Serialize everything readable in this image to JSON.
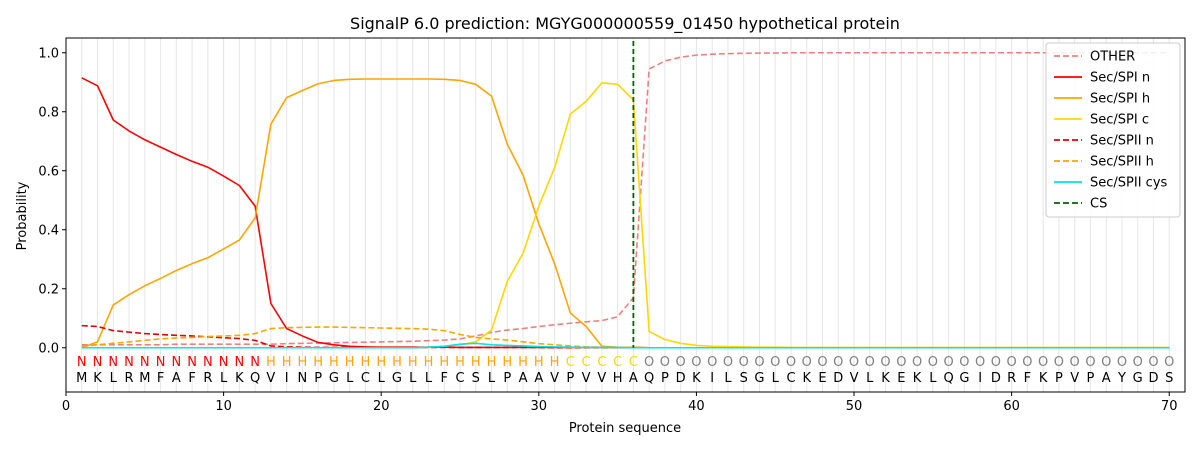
{
  "chart_data": {
    "type": "line",
    "title": "SignalP 6.0 prediction: MGYG000000559_01450 hypothetical protein",
    "xlabel": "Protein sequence",
    "ylabel": "Probability",
    "xlim": [
      0,
      71
    ],
    "ylim": [
      -0.15,
      1.05
    ],
    "x_ticks": [
      "0",
      "10",
      "20",
      "30",
      "40",
      "50",
      "60",
      "70"
    ],
    "y_ticks": [
      "0.0",
      "0.2",
      "0.4",
      "0.6",
      "0.8",
      "1.0"
    ],
    "legend_position": "top-right",
    "sequence": [
      "M",
      "K",
      "L",
      "R",
      "M",
      "F",
      "A",
      "F",
      "R",
      "L",
      "K",
      "Q",
      "V",
      "I",
      "N",
      "P",
      "G",
      "L",
      "C",
      "L",
      "G",
      "L",
      "L",
      "F",
      "C",
      "S",
      "L",
      "P",
      "A",
      "A",
      "V",
      "P",
      "V",
      "V",
      "H",
      "A",
      "Q",
      "P",
      "D",
      "K",
      "I",
      "L",
      "S",
      "G",
      "L",
      "C",
      "K",
      "E",
      "D",
      "V",
      "L",
      "K",
      "E",
      "K",
      "L",
      "Q",
      "G",
      "I",
      "D",
      "R",
      "F",
      "K",
      "P",
      "V",
      "P",
      "A",
      "Y",
      "G",
      "D",
      "S"
    ],
    "regions": [
      "N",
      "N",
      "N",
      "N",
      "N",
      "N",
      "N",
      "N",
      "N",
      "N",
      "N",
      "N",
      "H",
      "H",
      "H",
      "H",
      "H",
      "H",
      "H",
      "H",
      "H",
      "H",
      "H",
      "H",
      "H",
      "H",
      "H",
      "H",
      "H",
      "H",
      "H",
      "C",
      "C",
      "C",
      "C",
      "C",
      "O",
      "O",
      "O",
      "O",
      "O",
      "O",
      "O",
      "O",
      "O",
      "O",
      "O",
      "O",
      "O",
      "O",
      "O",
      "O",
      "O",
      "O",
      "O",
      "O",
      "O",
      "O",
      "O",
      "O",
      "O",
      "O",
      "O",
      "O",
      "O",
      "O",
      "O",
      "O",
      "O",
      "O"
    ],
    "region_colors": {
      "N": "#ff0000",
      "H": "#ffa500",
      "C": "#ffd700",
      "O": "#808080"
    },
    "cleavage_site": 36,
    "series": [
      {
        "name": "OTHER",
        "color": "#f08080",
        "dash": "dashed",
        "values": [
          0.01,
          0.01,
          0.01,
          0.01,
          0.01,
          0.01,
          0.012,
          0.012,
          0.012,
          0.012,
          0.012,
          0.012,
          0.012,
          0.014,
          0.015,
          0.016,
          0.017,
          0.018,
          0.019,
          0.02,
          0.021,
          0.022,
          0.024,
          0.026,
          0.03,
          0.04,
          0.052,
          0.06,
          0.065,
          0.072,
          0.078,
          0.083,
          0.088,
          0.092,
          0.105,
          0.17,
          0.945,
          0.972,
          0.985,
          0.992,
          0.995,
          0.997,
          0.998,
          0.999,
          0.999,
          1.0,
          1.0,
          1.0,
          1.0,
          1.0,
          1.0,
          1.0,
          1.0,
          1.0,
          1.0,
          1.0,
          1.0,
          1.0,
          1.0,
          1.0,
          1.0,
          1.0,
          1.0,
          1.0,
          1.0,
          1.0,
          1.0,
          1.0,
          1.0,
          1.0
        ]
      },
      {
        "name": "Sec/SPI n",
        "color": "#ff0000",
        "dash": "solid",
        "values": [
          0.915,
          0.888,
          0.772,
          0.735,
          0.705,
          0.68,
          0.655,
          0.632,
          0.612,
          0.582,
          0.55,
          0.48,
          0.15,
          0.065,
          0.04,
          0.018,
          0.01,
          0.005,
          0.003,
          0.002,
          0.002,
          0.002,
          0.002,
          0.002,
          0.001,
          0.001,
          0.001,
          0.001,
          0.001,
          0.001,
          0.001,
          0.001,
          0.001,
          0.001,
          0.001,
          0.001,
          0.0,
          0.0,
          0.0,
          0.0,
          0.0,
          0.0,
          0.0,
          0.0,
          0.0,
          0.0,
          0.0,
          0.0,
          0.0,
          0.0,
          0.0,
          0.0,
          0.0,
          0.0,
          0.0,
          0.0,
          0.0,
          0.0,
          0.0,
          0.0,
          0.0,
          0.0,
          0.0,
          0.0,
          0.0,
          0.0,
          0.0,
          0.0,
          0.0,
          0.0
        ]
      },
      {
        "name": "Sec/SPI h",
        "color": "#ffa500",
        "dash": "solid",
        "values": [
          0.0,
          0.02,
          0.145,
          0.18,
          0.21,
          0.235,
          0.262,
          0.285,
          0.305,
          0.335,
          0.365,
          0.44,
          0.758,
          0.848,
          0.872,
          0.895,
          0.906,
          0.91,
          0.911,
          0.911,
          0.911,
          0.911,
          0.911,
          0.91,
          0.906,
          0.893,
          0.853,
          0.69,
          0.585,
          0.42,
          0.285,
          0.118,
          0.072,
          0.005,
          0.002,
          0.001,
          0.0,
          0.0,
          0.0,
          0.0,
          0.0,
          0.0,
          0.0,
          0.0,
          0.0,
          0.0,
          0.0,
          0.0,
          0.0,
          0.0,
          0.0,
          0.0,
          0.0,
          0.0,
          0.0,
          0.0,
          0.0,
          0.0,
          0.0,
          0.0,
          0.0,
          0.0,
          0.0,
          0.0,
          0.0,
          0.0,
          0.0,
          0.0,
          0.0,
          0.0
        ]
      },
      {
        "name": "Sec/SPI c",
        "color": "#ffd700",
        "dash": "solid",
        "values": [
          0.0,
          0.0,
          0.0,
          0.0,
          0.0,
          0.0,
          0.0,
          0.0,
          0.0,
          0.0,
          0.0,
          0.0,
          0.0,
          0.0,
          0.0,
          0.0,
          0.0,
          0.0,
          0.0,
          0.0,
          0.0,
          0.0,
          0.002,
          0.005,
          0.01,
          0.02,
          0.06,
          0.225,
          0.32,
          0.48,
          0.61,
          0.792,
          0.835,
          0.898,
          0.893,
          0.84,
          0.055,
          0.028,
          0.015,
          0.008,
          0.005,
          0.004,
          0.003,
          0.002,
          0.002,
          0.001,
          0.001,
          0.001,
          0.001,
          0.001,
          0.001,
          0.001,
          0.001,
          0.001,
          0.001,
          0.001,
          0.001,
          0.001,
          0.001,
          0.001,
          0.001,
          0.001,
          0.001,
          0.001,
          0.001,
          0.001,
          0.001,
          0.001,
          0.001,
          0.001
        ]
      },
      {
        "name": "Sec/SPII n",
        "color": "#e00000",
        "dash": "dashed",
        "values": [
          0.075,
          0.072,
          0.058,
          0.053,
          0.048,
          0.045,
          0.042,
          0.04,
          0.037,
          0.034,
          0.031,
          0.025,
          0.006,
          0.003,
          0.002,
          0.001,
          0.001,
          0.001,
          0.001,
          0.001,
          0.001,
          0.001,
          0.001,
          0.001,
          0.001,
          0.001,
          0.001,
          0.001,
          0.001,
          0.001,
          0.0,
          0.0,
          0.0,
          0.0,
          0.0,
          0.0,
          0.0,
          0.0,
          0.0,
          0.0,
          0.0,
          0.0,
          0.0,
          0.0,
          0.0,
          0.0,
          0.0,
          0.0,
          0.0,
          0.0,
          0.0,
          0.0,
          0.0,
          0.0,
          0.0,
          0.0,
          0.0,
          0.0,
          0.0,
          0.0,
          0.0,
          0.0,
          0.0,
          0.0,
          0.0,
          0.0,
          0.0,
          0.0,
          0.0,
          0.0
        ]
      },
      {
        "name": "Sec/SPII h",
        "color": "#ffa500",
        "dash": "dashed",
        "values": [
          0.005,
          0.01,
          0.015,
          0.02,
          0.025,
          0.03,
          0.033,
          0.035,
          0.038,
          0.04,
          0.042,
          0.048,
          0.065,
          0.068,
          0.069,
          0.07,
          0.07,
          0.069,
          0.068,
          0.067,
          0.066,
          0.065,
          0.063,
          0.058,
          0.045,
          0.035,
          0.03,
          0.026,
          0.02,
          0.014,
          0.01,
          0.006,
          0.003,
          0.002,
          0.001,
          0.001,
          0.0,
          0.0,
          0.0,
          0.0,
          0.0,
          0.0,
          0.0,
          0.0,
          0.0,
          0.0,
          0.0,
          0.0,
          0.0,
          0.0,
          0.0,
          0.0,
          0.0,
          0.0,
          0.0,
          0.0,
          0.0,
          0.0,
          0.0,
          0.0,
          0.0,
          0.0,
          0.0,
          0.0,
          0.0,
          0.0,
          0.0,
          0.0,
          0.0,
          0.0
        ]
      },
      {
        "name": "Sec/SPII cys",
        "color": "#00e5e5",
        "dash": "solid",
        "values": [
          0.0,
          0.0,
          0.0,
          0.0,
          0.0,
          0.0,
          0.0,
          0.0,
          0.0,
          0.0,
          0.0,
          0.0,
          0.0,
          0.0,
          0.0,
          0.0,
          0.0,
          0.0,
          0.0,
          0.0,
          0.0,
          0.0,
          0.002,
          0.005,
          0.012,
          0.015,
          0.01,
          0.008,
          0.006,
          0.004,
          0.003,
          0.002,
          0.001,
          0.001,
          0.001,
          0.0,
          0.0,
          0.0,
          0.0,
          0.0,
          0.0,
          0.0,
          0.0,
          0.0,
          0.0,
          0.0,
          0.0,
          0.0,
          0.0,
          0.0,
          0.0,
          0.0,
          0.0,
          0.0,
          0.0,
          0.0,
          0.0,
          0.0,
          0.0,
          0.0,
          0.0,
          0.0,
          0.0,
          0.0,
          0.0,
          0.0,
          0.0,
          0.0,
          0.0,
          0.0
        ]
      },
      {
        "name": "CS",
        "color": "#006400",
        "dash": "dashed",
        "values": []
      }
    ]
  }
}
